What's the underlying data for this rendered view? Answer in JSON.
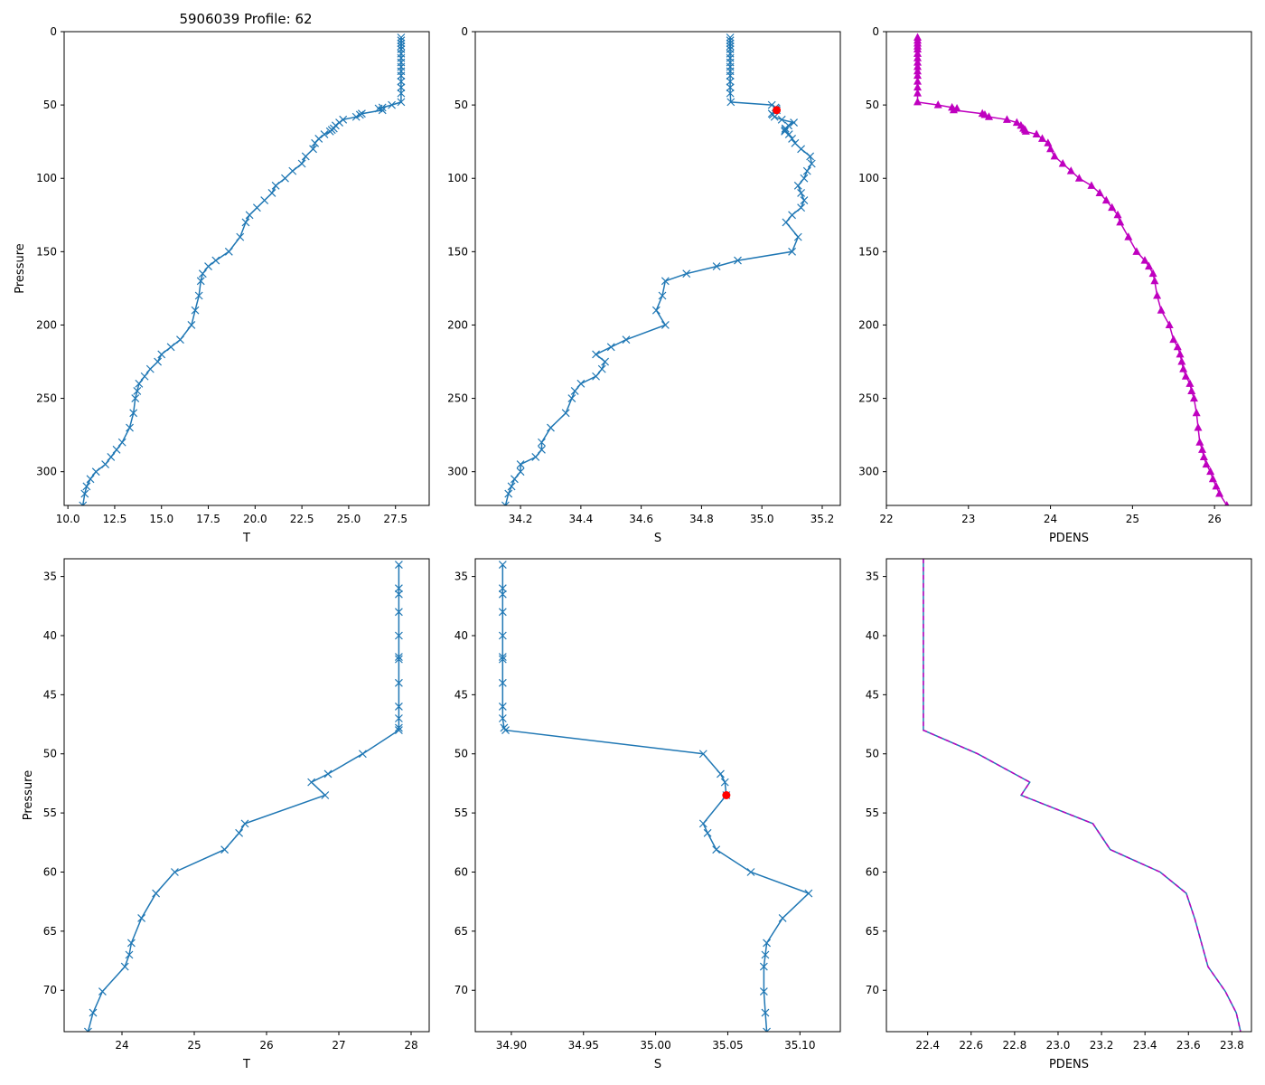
{
  "figure": {
    "title": "5906039 Profile: 62"
  },
  "colors": {
    "line": "#1f77b4",
    "magenta": "#bf00bf",
    "flag": "#ff0000",
    "axis": "#000000"
  },
  "chart_data": [
    {
      "type": "line",
      "panel": "top-T",
      "marker": "x",
      "xlabel": "T",
      "ylabel": "Pressure",
      "xlim": [
        9.8,
        29.3
      ],
      "ylim": [
        323,
        0
      ],
      "xticks": [
        "10.0",
        "12.5",
        "15.0",
        "17.5",
        "20.0",
        "22.5",
        "25.0",
        "27.5"
      ],
      "yticks": [
        "0",
        "50",
        "100",
        "150",
        "200",
        "250",
        "300"
      ],
      "xtickvals": [
        10,
        12.5,
        15,
        17.5,
        20,
        22.5,
        25,
        27.5
      ],
      "ytickvals": [
        0,
        50,
        100,
        150,
        200,
        250,
        300
      ],
      "series": [
        {
          "name": "T",
          "x": [
            27.8,
            27.8,
            27.8,
            27.8,
            27.8,
            27.8,
            27.8,
            27.8,
            27.8,
            27.8,
            27.8,
            27.8,
            27.8,
            27.8,
            27.8,
            27.3,
            26.8,
            26.6,
            26.8,
            25.7,
            25.6,
            25.4,
            24.7,
            24.5,
            24.3,
            24.2,
            24.1,
            24.0,
            23.7,
            23.4,
            23.2,
            23.1,
            22.7,
            22.5,
            22.0,
            21.6,
            21.1,
            20.9,
            20.5,
            20.1,
            19.7,
            19.5,
            19.2,
            18.6,
            17.9,
            17.5,
            17.2,
            17.1,
            17.0,
            16.8,
            16.6,
            16.0,
            15.5,
            15.0,
            14.8,
            14.4,
            14.1,
            13.8,
            13.7,
            13.6,
            13.5,
            13.3,
            12.9,
            12.6,
            12.3,
            12.0,
            11.5,
            11.2,
            11.0,
            10.9,
            10.8
          ],
          "y": [
            4,
            6,
            8,
            10,
            12,
            15,
            18,
            21,
            24,
            27,
            30,
            34,
            38,
            42,
            48,
            50,
            51.7,
            52.4,
            53.5,
            55.9,
            56.7,
            58.1,
            60,
            62,
            64,
            66,
            67,
            68,
            70,
            73,
            76,
            80,
            85,
            90,
            95,
            100,
            105,
            110,
            115,
            120,
            125,
            130,
            140,
            150,
            156,
            160,
            165,
            170,
            180,
            190,
            200,
            210,
            215,
            220,
            225,
            230,
            235,
            240,
            245,
            250,
            260,
            270,
            280,
            285,
            290,
            295,
            300,
            305,
            310,
            315,
            323
          ]
        }
      ]
    },
    {
      "type": "line",
      "panel": "top-S",
      "marker": "x",
      "xlabel": "S",
      "xlim": [
        34.05,
        35.26
      ],
      "ylim": [
        323,
        0
      ],
      "xticks": [
        "34.2",
        "34.4",
        "34.6",
        "34.8",
        "35.0",
        "35.2"
      ],
      "yticks": [
        "0",
        "50",
        "100",
        "150",
        "200",
        "250",
        "300"
      ],
      "xtickvals": [
        34.2,
        34.4,
        34.6,
        34.8,
        35.0,
        35.2
      ],
      "ytickvals": [
        0,
        50,
        100,
        150,
        200,
        250,
        300
      ],
      "flag_point": {
        "x": 35.049,
        "y": 53.5
      },
      "series": [
        {
          "name": "S",
          "x": [
            34.895,
            34.895,
            34.895,
            34.895,
            34.895,
            34.895,
            34.895,
            34.895,
            34.895,
            34.895,
            34.895,
            34.895,
            34.895,
            34.895,
            34.897,
            35.033,
            35.045,
            35.048,
            35.049,
            35.033,
            35.036,
            35.042,
            35.066,
            35.106,
            35.088,
            35.078,
            35.077,
            35.076,
            35.09,
            35.1,
            35.11,
            35.13,
            35.16,
            35.165,
            35.15,
            35.14,
            35.12,
            35.13,
            35.14,
            35.13,
            35.1,
            35.08,
            35.12,
            35.1,
            34.92,
            34.85,
            34.75,
            34.68,
            34.67,
            34.65,
            34.68,
            34.55,
            34.5,
            34.45,
            34.48,
            34.47,
            34.45,
            34.4,
            34.38,
            34.37,
            34.35,
            34.3,
            34.27,
            34.27,
            34.25,
            34.2,
            34.2,
            34.18,
            34.17,
            34.16,
            34.15
          ],
          "y": [
            4,
            6,
            8,
            10,
            12,
            15,
            18,
            21,
            24,
            27,
            30,
            34,
            38,
            42,
            48,
            50,
            51.7,
            52.4,
            53.5,
            55.9,
            56.7,
            58.1,
            60,
            62,
            64,
            66,
            67,
            68,
            70,
            73,
            76,
            80,
            85,
            90,
            95,
            100,
            105,
            110,
            115,
            120,
            125,
            130,
            140,
            150,
            156,
            160,
            165,
            170,
            180,
            190,
            200,
            210,
            215,
            220,
            225,
            230,
            235,
            240,
            245,
            250,
            260,
            270,
            280,
            285,
            290,
            295,
            300,
            305,
            310,
            315,
            323
          ]
        }
      ]
    },
    {
      "type": "scatter",
      "panel": "top-PDENS",
      "marker": "triangle",
      "xlabel": "PDENS",
      "xlim": [
        22.0,
        26.45
      ],
      "ylim": [
        323,
        0
      ],
      "xticks": [
        "22",
        "23",
        "24",
        "25",
        "26"
      ],
      "yticks": [
        "0",
        "50",
        "100",
        "150",
        "200",
        "250",
        "300"
      ],
      "xtickvals": [
        22,
        23,
        24,
        25,
        26
      ],
      "ytickvals": [
        0,
        50,
        100,
        150,
        200,
        250,
        300
      ],
      "series": [
        {
          "name": "PDENS",
          "x": [
            22.38,
            22.38,
            22.38,
            22.38,
            22.38,
            22.38,
            22.38,
            22.38,
            22.38,
            22.38,
            22.38,
            22.38,
            22.38,
            22.38,
            22.38,
            22.63,
            22.8,
            22.86,
            22.82,
            23.17,
            23.2,
            23.25,
            23.47,
            23.59,
            23.64,
            23.67,
            23.69,
            23.7,
            23.83,
            23.9,
            23.97,
            24.0,
            24.05,
            24.15,
            24.25,
            24.35,
            24.5,
            24.6,
            24.68,
            24.75,
            24.82,
            24.85,
            24.95,
            25.05,
            25.15,
            25.2,
            25.25,
            25.27,
            25.3,
            25.35,
            25.45,
            25.5,
            25.55,
            25.58,
            25.6,
            25.62,
            25.65,
            25.7,
            25.72,
            25.75,
            25.78,
            25.8,
            25.82,
            25.85,
            25.87,
            25.9,
            25.95,
            25.98,
            26.02,
            26.06,
            26.15
          ],
          "y": [
            4,
            6,
            8,
            10,
            12,
            15,
            18,
            21,
            24,
            27,
            30,
            34,
            38,
            42,
            48,
            50,
            51.7,
            52.4,
            53.5,
            55.9,
            56.7,
            58.1,
            60,
            62,
            64,
            66,
            67,
            68,
            70,
            73,
            76,
            80,
            85,
            90,
            95,
            100,
            105,
            110,
            115,
            120,
            125,
            130,
            140,
            150,
            156,
            160,
            165,
            170,
            180,
            190,
            200,
            210,
            215,
            220,
            225,
            230,
            235,
            240,
            245,
            250,
            260,
            270,
            280,
            285,
            290,
            295,
            300,
            305,
            310,
            315,
            323
          ]
        }
      ]
    },
    {
      "type": "line",
      "panel": "bottom-T",
      "marker": "x",
      "xlabel": "T",
      "ylabel": "Pressure",
      "xlim": [
        23.2,
        28.25
      ],
      "ylim": [
        73.5,
        33.5
      ],
      "xticks": [
        "24",
        "25",
        "26",
        "27",
        "28"
      ],
      "yticks": [
        "35",
        "40",
        "45",
        "50",
        "55",
        "60",
        "65",
        "70"
      ],
      "xtickvals": [
        24,
        25,
        26,
        27,
        28
      ],
      "ytickvals": [
        35,
        40,
        45,
        50,
        55,
        60,
        65,
        70
      ],
      "series": [
        {
          "name": "T",
          "x": [
            27.83,
            27.83,
            27.83,
            27.83,
            27.83,
            27.83,
            27.83,
            27.83,
            27.83,
            27.83,
            27.83,
            27.83,
            27.33,
            26.85,
            26.62,
            26.81,
            25.7,
            25.62,
            25.42,
            24.73,
            24.47,
            24.27,
            24.13,
            24.1,
            24.04,
            23.73,
            23.6,
            23.53
          ],
          "y": [
            34,
            36,
            36.5,
            38,
            40,
            41.8,
            42,
            44,
            46,
            47,
            47.8,
            48,
            50,
            51.7,
            52.4,
            53.5,
            55.9,
            56.7,
            58.1,
            60,
            61.8,
            63.9,
            66,
            67,
            68,
            70.1,
            71.9,
            73.5
          ]
        }
      ]
    },
    {
      "type": "line",
      "panel": "bottom-S",
      "marker": "x",
      "xlabel": "S",
      "xlim": [
        34.875,
        35.128
      ],
      "ylim": [
        73.5,
        33.5
      ],
      "xticks": [
        "34.90",
        "34.95",
        "35.00",
        "35.05",
        "35.10"
      ],
      "yticks": [
        "35",
        "40",
        "45",
        "50",
        "55",
        "60",
        "65",
        "70"
      ],
      "xtickvals": [
        34.9,
        34.95,
        35.0,
        35.05,
        35.1
      ],
      "ytickvals": [
        35,
        40,
        45,
        50,
        55,
        60,
        65,
        70
      ],
      "flag_point": {
        "x": 35.049,
        "y": 53.5
      },
      "series": [
        {
          "name": "S",
          "x": [
            34.894,
            34.894,
            34.894,
            34.894,
            34.894,
            34.894,
            34.894,
            34.894,
            34.894,
            34.894,
            34.895,
            34.896,
            35.033,
            35.045,
            35.048,
            35.049,
            35.033,
            35.036,
            35.042,
            35.066,
            35.106,
            35.088,
            35.077,
            35.076,
            35.075,
            35.075,
            35.076,
            35.077
          ],
          "y": [
            34,
            36,
            36.5,
            38,
            40,
            41.8,
            42,
            44,
            46,
            47,
            47.8,
            48,
            50,
            51.7,
            52.4,
            53.5,
            55.9,
            56.7,
            58.1,
            60,
            61.8,
            63.9,
            66,
            67,
            68,
            70.1,
            71.9,
            73.5
          ]
        }
      ]
    },
    {
      "type": "line",
      "panel": "bottom-PDENS",
      "marker": "none",
      "xlabel": "PDENS",
      "xlim": [
        22.21,
        23.89
      ],
      "ylim": [
        73.5,
        33.5
      ],
      "xticks": [
        "22.4",
        "22.6",
        "22.8",
        "23.0",
        "23.2",
        "23.4",
        "23.6",
        "23.8"
      ],
      "yticks": [
        "35",
        "40",
        "45",
        "50",
        "55",
        "60",
        "65",
        "70"
      ],
      "xtickvals": [
        22.4,
        22.6,
        22.8,
        23.0,
        23.2,
        23.4,
        23.6,
        23.8
      ],
      "ytickvals": [
        35,
        40,
        45,
        50,
        55,
        60,
        65,
        70
      ],
      "series": [
        {
          "name": "PDENS",
          "x": [
            22.38,
            22.38,
            22.38,
            22.38,
            22.38,
            22.63,
            22.87,
            22.83,
            23.16,
            23.24,
            23.47,
            23.59,
            23.63,
            23.66,
            23.69,
            23.77,
            23.82,
            23.84
          ],
          "y": [
            33.5,
            40,
            46,
            47.8,
            48,
            50,
            52.4,
            53.5,
            55.9,
            58.1,
            60,
            61.8,
            64,
            66,
            68,
            70.1,
            71.9,
            73.5
          ]
        },
        {
          "name": "PDENS-dashed",
          "x": [
            22.38,
            22.38,
            22.38,
            22.38,
            22.38,
            22.63,
            22.87,
            22.83,
            23.16,
            23.24,
            23.47,
            23.59,
            23.63,
            23.66,
            23.69,
            23.77,
            23.82,
            23.84
          ],
          "y": [
            33.5,
            40,
            46,
            47.8,
            48,
            50,
            52.4,
            53.5,
            55.9,
            58.1,
            60,
            61.8,
            64,
            66,
            68,
            70.1,
            71.9,
            73.5
          ]
        }
      ]
    }
  ]
}
